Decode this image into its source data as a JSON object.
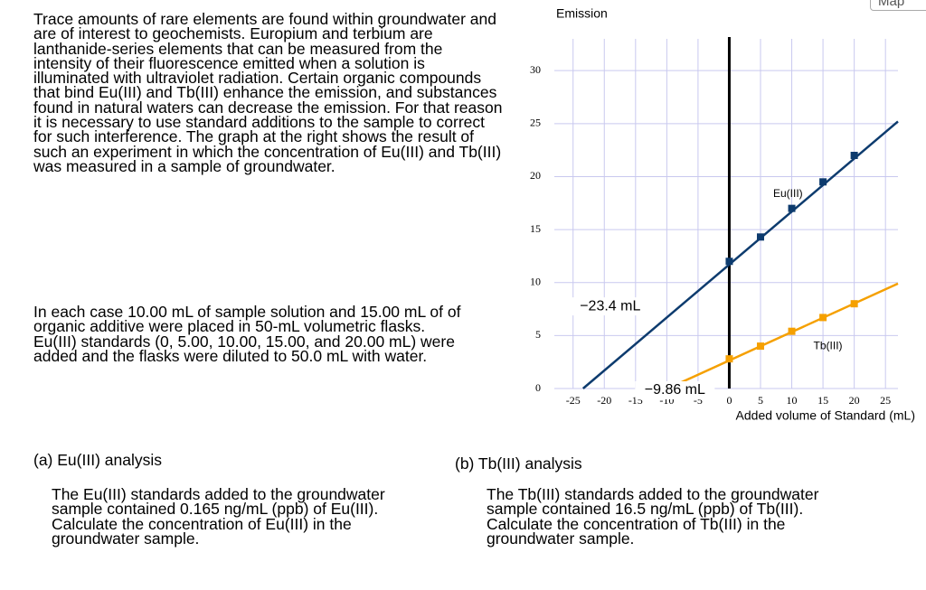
{
  "intro": "Trace amounts of rare elements are found within groundwater and are of interest to geochemists. Europium and terbium are lanthanide-series elements that can be measured from the intensity of their fluorescence emitted when a solution is illuminated with ultraviolet radiation. Certain organic compounds that bind Eu(III) and Tb(III) enhance the emission, and substances found in natural waters can decrease the emission. For that reason it is necessary to use standard additions to the sample to correct for such interference. The graph at the right shows the result of such an experiment in which the concentration of Eu(III) and Tb(III) was measured in a sample of groundwater.",
  "procedure": "In each case 10.00 mL of sample solution and 15.00 mL of of organic additive were placed in 50-mL volumetric flasks. Eu(III) standards (0, 5.00, 10.00, 15.00, and 20.00 mL) were added and the flasks were diluted to 50.0 mL with water.",
  "part_a": {
    "title": "(a) Eu(III) analysis",
    "text": "The Eu(III) standards added to the groundwater sample contained 0.165 ng/mL (ppb) of Eu(III). Calculate the concentration of Eu(III) in the groundwater sample."
  },
  "part_b": {
    "title": "(b)  Tb(III) analysis",
    "text": "The Tb(III) standards added to the groundwater sample contained 16.5 ng/mL (ppb) of Tb(III). Calculate the concentration of Tb(III) in the groundwater sample."
  },
  "map_button": "Map",
  "chart_data": {
    "type": "line",
    "y_label": "Emission",
    "x_label": "Added volume of Standard (mL)",
    "xlim": [
      -28,
      27
    ],
    "ylim": [
      0,
      33
    ],
    "xticks": [
      -25,
      -20,
      -15,
      -10,
      -5,
      0,
      5,
      10,
      15,
      20,
      25
    ],
    "yticks": [
      0,
      5,
      10,
      15,
      20,
      25,
      30
    ],
    "grid": true,
    "series": [
      {
        "name": "Eu(III)",
        "color": "#0d3b6e",
        "x": [
          0,
          5,
          10,
          15,
          20
        ],
        "values": [
          12.0,
          14.3,
          17.0,
          19.5,
          22.0
        ],
        "fit": {
          "x": [
            -23.4,
            27
          ],
          "values": [
            0,
            25.2
          ]
        },
        "annotation": "−23.4 mL"
      },
      {
        "name": "Tb(III)",
        "color": "#f5a000",
        "x": [
          0,
          5,
          10,
          15,
          20
        ],
        "values": [
          2.8,
          4.0,
          5.4,
          6.7,
          8.0
        ],
        "fit": {
          "x": [
            -9.86,
            27
          ],
          "values": [
            0,
            9.9
          ]
        },
        "annotation": "−9.86 mL"
      }
    ]
  }
}
